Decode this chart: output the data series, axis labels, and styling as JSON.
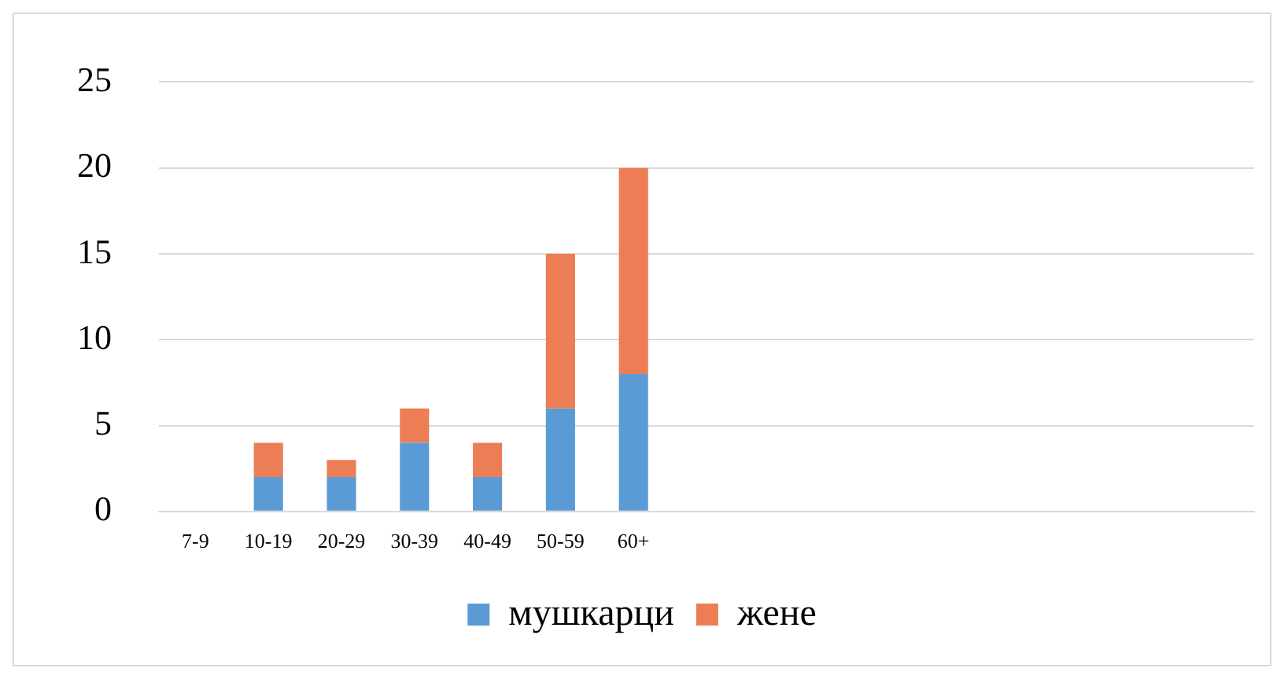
{
  "chart_data": {
    "type": "bar",
    "stacked": true,
    "categories": [
      "7-9",
      "10-19",
      "20-29",
      "30-39",
      "40-49",
      "50-59",
      "60+",
      null,
      null,
      null,
      null,
      null,
      null,
      null,
      null
    ],
    "series": [
      {
        "name": "мушкарци",
        "color": "#5b9bd5",
        "values": [
          0,
          2,
          2,
          4,
          2,
          6,
          8,
          null,
          null,
          null,
          null,
          null,
          null,
          null,
          null
        ]
      },
      {
        "name": "жене",
        "color": "#ed7d55",
        "values": [
          0,
          2,
          1,
          2,
          2,
          9,
          12,
          null,
          null,
          null,
          null,
          null,
          null,
          null,
          null
        ]
      }
    ],
    "ylim": [
      0,
      25
    ],
    "yticks": [
      0,
      5,
      10,
      15,
      20,
      25
    ],
    "grid": "y",
    "legend": "bottom"
  }
}
